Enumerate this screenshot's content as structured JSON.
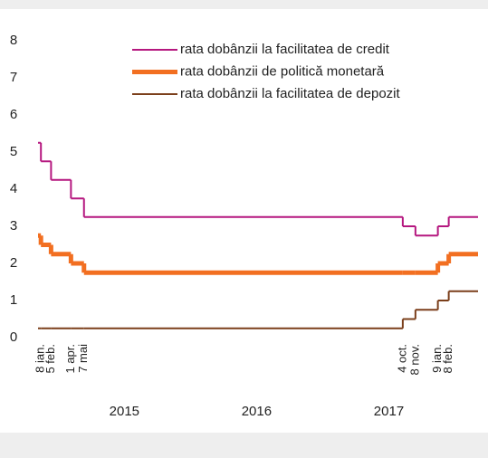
{
  "chart_data": {
    "type": "step-line",
    "x": [
      "2014-12-31",
      "2015-01-08",
      "2015-02-05",
      "2015-04-01",
      "2015-05-07",
      "2017-10-04",
      "2017-11-08",
      "2018-01-09",
      "2018-02-08"
    ],
    "xlim": [
      "2014-12-31",
      "2018-04-30"
    ],
    "xticks": [
      {
        "value": "2015-01-08",
        "label": "8 ian."
      },
      {
        "value": "2015-02-05",
        "label": "5 feb."
      },
      {
        "value": "2015-04-01",
        "label": "1 apr."
      },
      {
        "value": "2015-05-07",
        "label": "7 mai"
      },
      {
        "value": "2017-10-04",
        "label": "4 oct."
      },
      {
        "value": "2017-11-08",
        "label": "8 nov."
      },
      {
        "value": "2018-01-09",
        "label": "9 ian."
      },
      {
        "value": "2018-02-08",
        "label": "8 feb."
      }
    ],
    "year_labels": [
      2015,
      2016,
      2017
    ],
    "ylim": [
      0,
      8
    ],
    "yticks": [
      0,
      1,
      2,
      3,
      4,
      5,
      6,
      7,
      8
    ],
    "legend": "top-right",
    "series": [
      {
        "name": "rata dobânzii la facilitatea de credit",
        "color": "#b5177f",
        "width": 2,
        "values": [
          5.25,
          4.75,
          4.25,
          3.75,
          3.25,
          3.0,
          2.75,
          3.0,
          3.25
        ]
      },
      {
        "name": "rata dobânzii de politică monetară",
        "color": "#f26f21",
        "width": 5,
        "values": [
          2.75,
          2.5,
          2.25,
          2.0,
          1.75,
          1.75,
          1.75,
          2.0,
          2.25
        ]
      },
      {
        "name": "rata dobânzii la facilitatea de depozit",
        "color": "#7b3f1b",
        "width": 2,
        "values": [
          0.25,
          0.25,
          0.25,
          0.25,
          0.25,
          0.5,
          0.75,
          1.0,
          1.25
        ]
      }
    ]
  }
}
